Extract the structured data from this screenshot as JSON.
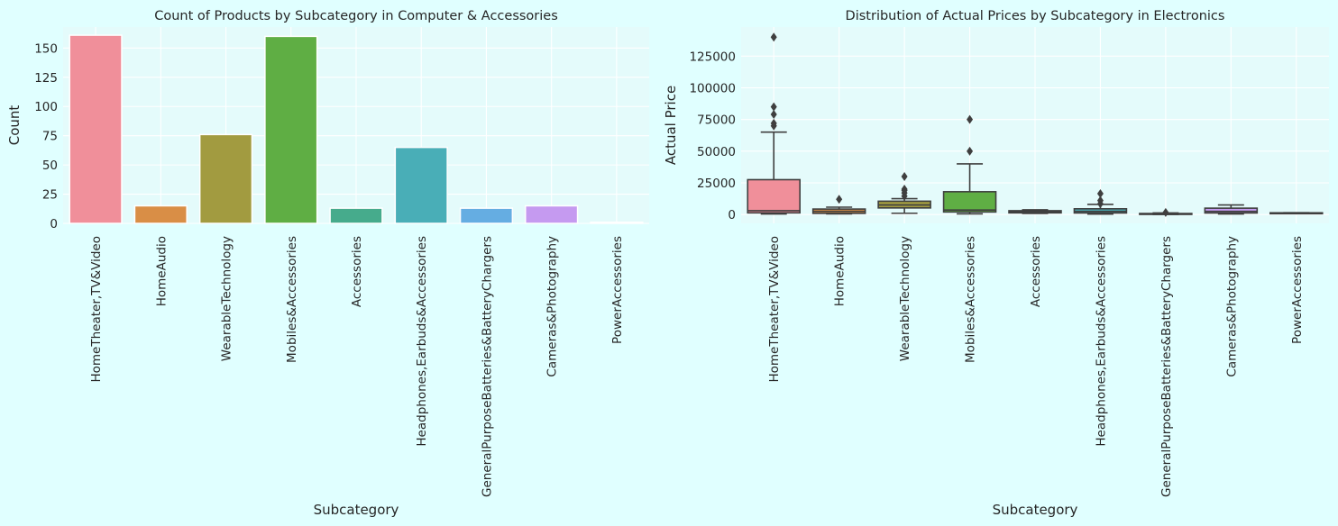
{
  "colors": {
    "background": "#e0ffff",
    "grid": "#ffffff",
    "box_line": "#3f3f3f",
    "palette": [
      "#f08f9a",
      "#d98e46",
      "#a29b40",
      "#5fae44",
      "#46ab8c",
      "#49aeb7",
      "#65ade2",
      "#c59af0",
      "#f095d2"
    ]
  },
  "chart_data": [
    {
      "type": "bar",
      "title": "Count of Products by Subcategory in Computer & Accessories",
      "xlabel": "Subcategory",
      "ylabel": "Count",
      "categories": [
        "HomeTheater,TV&Video",
        "HomeAudio",
        "WearableTechnology",
        "Mobiles&Accessories",
        "Accessories",
        "Headphones,Earbuds&Accessories",
        "GeneralPurposeBatteries&BatteryChargers",
        "Cameras&Photography",
        "PowerAccessories"
      ],
      "values": [
        161,
        15,
        76,
        160,
        13,
        65,
        13,
        15,
        1
      ],
      "ylim": [
        0,
        168
      ],
      "yticks": [
        0,
        25,
        50,
        75,
        100,
        125,
        150
      ],
      "ytick_labels": [
        "0",
        "25",
        "50",
        "75",
        "100",
        "125",
        "150"
      ],
      "grid": true
    },
    {
      "type": "box",
      "title": "Distribution of Actual Prices by Subcategory in Electronics",
      "xlabel": "Subcategory",
      "ylabel": "Actual Price",
      "categories": [
        "HomeTheater,TV&Video",
        "HomeAudio",
        "WearableTechnology",
        "Mobiles&Accessories",
        "Accessories",
        "Headphones,Earbuds&Accessories",
        "GeneralPurposeBatteries&BatteryChargers",
        "Cameras&Photography",
        "PowerAccessories"
      ],
      "boxes": [
        {
          "whisker_low": 400,
          "q1": 1300,
          "median": 3000,
          "q3": 27500,
          "whisker_high": 65000,
          "outliers": [
            70000,
            72000,
            79000,
            85000,
            140000
          ]
        },
        {
          "whisker_low": 500,
          "q1": 900,
          "median": 2500,
          "q3": 4300,
          "whisker_high": 5800,
          "outliers": [
            12000
          ]
        },
        {
          "whisker_low": 1000,
          "q1": 5200,
          "median": 7500,
          "q3": 10500,
          "whisker_high": 12500,
          "outliers": [
            14500,
            17000,
            19000,
            20000,
            30000
          ]
        },
        {
          "whisker_low": 500,
          "q1": 2000,
          "median": 3500,
          "q3": 18000,
          "whisker_high": 40000,
          "outliers": [
            50000,
            75000
          ]
        },
        {
          "whisker_low": 900,
          "q1": 1300,
          "median": 2000,
          "q3": 3000,
          "whisker_high": 3700,
          "outliers": []
        },
        {
          "whisker_low": 300,
          "q1": 1200,
          "median": 2500,
          "q3": 4500,
          "whisker_high": 8000,
          "outliers": [
            8500,
            11000,
            16500
          ]
        },
        {
          "whisker_low": 100,
          "q1": 350,
          "median": 500,
          "q3": 800,
          "whisker_high": 1200,
          "outliers": [
            1600
          ]
        },
        {
          "whisker_low": 400,
          "q1": 1200,
          "median": 2500,
          "q3": 5000,
          "whisker_high": 7500,
          "outliers": []
        },
        {
          "whisker_low": 1200,
          "q1": 1250,
          "median": 1300,
          "q3": 1350,
          "whisker_high": 1400,
          "outliers": []
        }
      ],
      "ylim": [
        -7000,
        148000
      ],
      "yticks": [
        0,
        25000,
        50000,
        75000,
        100000,
        125000
      ],
      "ytick_labels": [
        "0",
        "25000",
        "50000",
        "75000",
        "100000",
        "125000"
      ],
      "grid": true
    }
  ]
}
